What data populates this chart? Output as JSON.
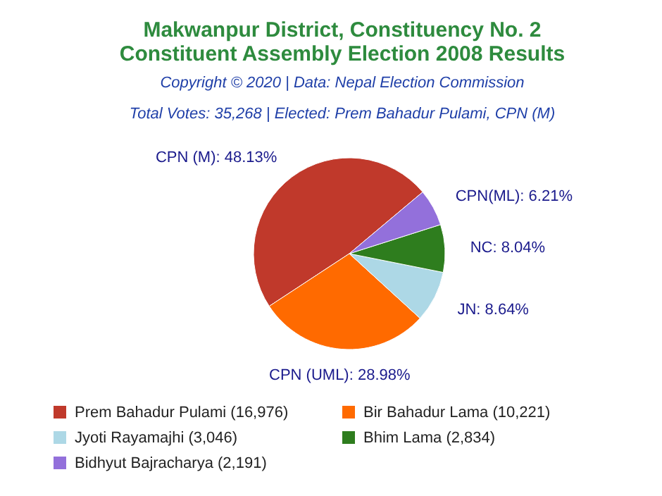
{
  "chart_data": {
    "type": "pie",
    "title": "Makwanpur District, Constituency No. 2\nConstituent Assembly Election 2008 Results",
    "subtitle": "Total Votes: 35,268 | Elected: Prem Bahadur Pulami, CPN (M)",
    "annotations": [
      "Copyright © 2020 | Data: Nepal Election Commission"
    ],
    "categories": [
      "Prem Bahadur Pulami (16,976)",
      "Bir Bahadur Lama (10,221)",
      "Jyoti Rayamajhi (3,046)",
      "Bhim Lama (2,834)",
      "Bidhyut Bajracharya (2,191)"
    ],
    "values": [
      48.13,
      28.98,
      8.64,
      8.04,
      6.21
    ],
    "value_labels": [
      "CPN (M): 48.13%",
      "CPN (UML): 28.98%",
      "JN: 8.64%",
      "NC: 8.04%",
      "CPN(ML): 6.21%"
    ],
    "colors": [
      "#c0392b",
      "#ff6a00",
      "#add8e6",
      "#2e7d1e",
      "#9370db"
    ],
    "legend": "bottom"
  }
}
